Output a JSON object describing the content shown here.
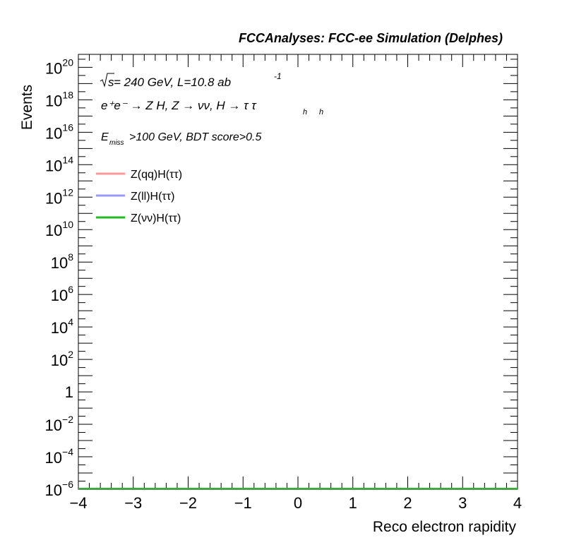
{
  "header": "FCCAnalyses: FCC-ee Simulation (Delphes)",
  "labels": {
    "ecm_prefix": "s",
    "ecm_text": " = 240 GeV, L=10.8 ab",
    "lumi_exp": "-1",
    "process": "e⁺e⁻ → Z H, Z → νν, H → τ τ",
    "tau_sub": "h",
    "cut_E": "E",
    "cut_sub": "miss",
    "cut_rest": ">100 GeV, BDT score>0.5"
  },
  "chart_data": {
    "type": "line",
    "title": "",
    "xlabel": "Reco electron rapidity",
    "ylabel": "Events",
    "xlim": [
      -4,
      4
    ],
    "ylim_log10": [
      -6,
      20.8
    ],
    "log_y": true,
    "x_ticks": [
      {
        "v": -4,
        "label": "−4"
      },
      {
        "v": -3,
        "label": "−3"
      },
      {
        "v": -2,
        "label": "−2"
      },
      {
        "v": -1,
        "label": "−1"
      },
      {
        "v": 0,
        "label": "0"
      },
      {
        "v": 1,
        "label": "1"
      },
      {
        "v": 2,
        "label": "2"
      },
      {
        "v": 3,
        "label": "3"
      },
      {
        "v": 4,
        "label": "4"
      }
    ],
    "y_ticks": [
      {
        "exp": 20,
        "base": "10",
        "sup": "20"
      },
      {
        "exp": 18,
        "base": "10",
        "sup": "18"
      },
      {
        "exp": 16,
        "base": "10",
        "sup": "16"
      },
      {
        "exp": 14,
        "base": "10",
        "sup": "14"
      },
      {
        "exp": 12,
        "base": "10",
        "sup": "12"
      },
      {
        "exp": 10,
        "base": "10",
        "sup": "10"
      },
      {
        "exp": 8,
        "base": "10",
        "sup": "8"
      },
      {
        "exp": 6,
        "base": "10",
        "sup": "6"
      },
      {
        "exp": 4,
        "base": "10",
        "sup": "4"
      },
      {
        "exp": 2,
        "base": "10",
        "sup": "2"
      },
      {
        "exp": 0,
        "base": "1",
        "sup": ""
      },
      {
        "exp": -2,
        "base": "10",
        "sup": "−2"
      },
      {
        "exp": -4,
        "base": "10",
        "sup": "−4"
      },
      {
        "exp": -6,
        "base": "10",
        "sup": "−6"
      }
    ],
    "legend_position": "top-left",
    "series": [
      {
        "name": "Z(qq)H(ττ)",
        "color": "#ff9999",
        "x": [
          -4,
          4
        ],
        "y_log10": [
          -6,
          -6
        ]
      },
      {
        "name": "Z(ll)H(ττ)",
        "color": "#9999ff",
        "x": [
          -4,
          4
        ],
        "y_log10": [
          -6,
          -6
        ]
      },
      {
        "name": "Z(νν)H(ττ)",
        "color": "#22bb22",
        "x": [
          -4,
          4
        ],
        "y_log10": [
          -6,
          -6
        ]
      }
    ]
  }
}
